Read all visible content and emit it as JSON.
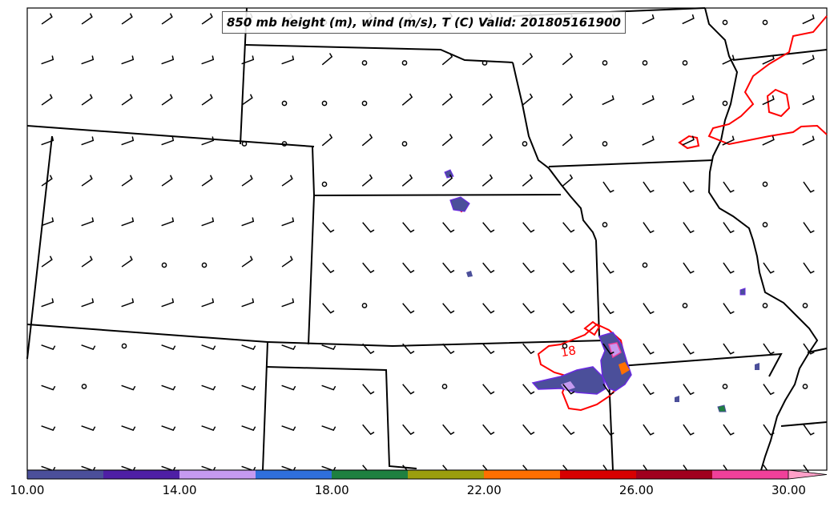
{
  "title": "850 mb height (m), wind (m/s), T (C) Valid: 201805161900",
  "contour_label": "18",
  "colorbar": {
    "colors": [
      "#4b4f9a",
      "#4e1fa5",
      "#c59af0",
      "#2f6fdc",
      "#1e8040",
      "#9b9e0e",
      "#ff6f00",
      "#d80000",
      "#a0001e",
      "#f0409a",
      "#ffa0c8"
    ],
    "tick_labels": [
      "10.00",
      "14.00",
      "18.00",
      "22.00",
      "26.00",
      "30.00"
    ],
    "range": [
      10,
      31
    ]
  },
  "line_colors": {
    "border": "#000000",
    "temperature": "#ff0000",
    "dewpoint": "#6a2ae0"
  }
}
